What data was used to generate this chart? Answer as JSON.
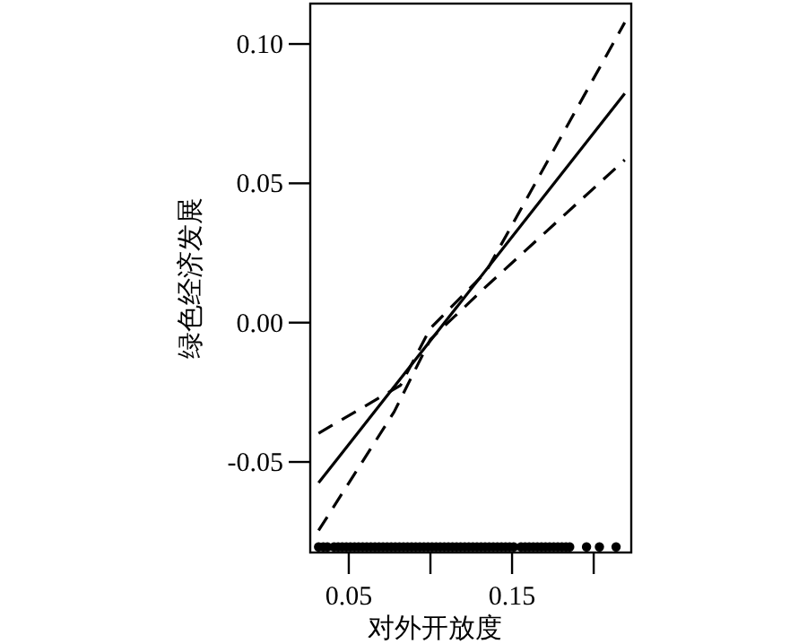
{
  "chart_data": {
    "type": "line",
    "xlabel": "对外开放度",
    "ylabel": "绿色经济发展",
    "xlim": [
      0.0264,
      0.223
    ],
    "ylim": [
      -0.0825,
      0.1145
    ],
    "xticks": [
      0.05,
      {
        "value": 0.1,
        "label": null
      },
      0.15,
      {
        "value": 0.2,
        "label": null
      }
    ],
    "yticks": [
      -0.05,
      {
        "value": 0,
        "label": "0.00"
      },
      0.05,
      {
        "value": 0.1,
        "label": "0.10"
      }
    ],
    "series": [
      {
        "color": "#000000",
        "line_style": "solid",
        "x": [
          0.0315,
          0.219
        ],
        "values": [
          -0.0575,
          0.0822
        ]
      },
      {
        "color": "#000000",
        "line_style": "dashed",
        "x": [
          0.0315,
          0.0817,
          0.1,
          0.134,
          0.219
        ],
        "values": [
          -0.0397,
          -0.0225,
          -0.002,
          0.0182,
          0.1077
        ]
      },
      {
        "color": "#000000",
        "line_style": "dashed",
        "x": [
          0.0315,
          0.0778,
          0.1,
          0.134,
          0.219
        ],
        "values": [
          -0.0746,
          -0.032,
          -0.006,
          0.0129,
          0.0584
        ]
      },
      {
        "type": "scatter",
        "color": "#000000",
        "x": [
          0.0315,
          0.0344,
          0.0369,
          0.041,
          0.0435,
          0.046,
          0.0485,
          0.051,
          0.0535,
          0.056,
          0.0585,
          0.061,
          0.0635,
          0.066,
          0.0685,
          0.071,
          0.0735,
          0.076,
          0.0785,
          0.081,
          0.0835,
          0.086,
          0.0885,
          0.091,
          0.0935,
          0.096,
          0.0985,
          0.101,
          0.1035,
          0.106,
          0.1085,
          0.111,
          0.1135,
          0.116,
          0.1185,
          0.121,
          0.1235,
          0.126,
          0.1285,
          0.131,
          0.1335,
          0.136,
          0.1385,
          0.141,
          0.1435,
          0.146,
          0.1485,
          0.151,
          0.1555,
          0.158,
          0.1605,
          0.163,
          0.1655,
          0.168,
          0.1705,
          0.173,
          0.1755,
          0.178,
          0.1805,
          0.183,
          0.1853,
          0.1956,
          0.2035,
          0.2137
        ],
        "values": [
          -0.0805,
          -0.0805,
          -0.0805,
          -0.0805,
          -0.0805,
          -0.0805,
          -0.0805,
          -0.0805,
          -0.0805,
          -0.0805,
          -0.0805,
          -0.0805,
          -0.0805,
          -0.0805,
          -0.0805,
          -0.0805,
          -0.0805,
          -0.0805,
          -0.0805,
          -0.0805,
          -0.0805,
          -0.0805,
          -0.0805,
          -0.0805,
          -0.0805,
          -0.0805,
          -0.0805,
          -0.0805,
          -0.0805,
          -0.0805,
          -0.0805,
          -0.0805,
          -0.0805,
          -0.0805,
          -0.0805,
          -0.0805,
          -0.0805,
          -0.0805,
          -0.0805,
          -0.0805,
          -0.0805,
          -0.0805,
          -0.0805,
          -0.0805,
          -0.0805,
          -0.0805,
          -0.0805,
          -0.0805,
          -0.0805,
          -0.0805,
          -0.0805,
          -0.0805,
          -0.0805,
          -0.0805,
          -0.0805,
          -0.0805,
          -0.0805,
          -0.0805,
          -0.0805,
          -0.0805,
          -0.0805,
          -0.0805,
          -0.0805,
          -0.0805
        ]
      }
    ]
  }
}
